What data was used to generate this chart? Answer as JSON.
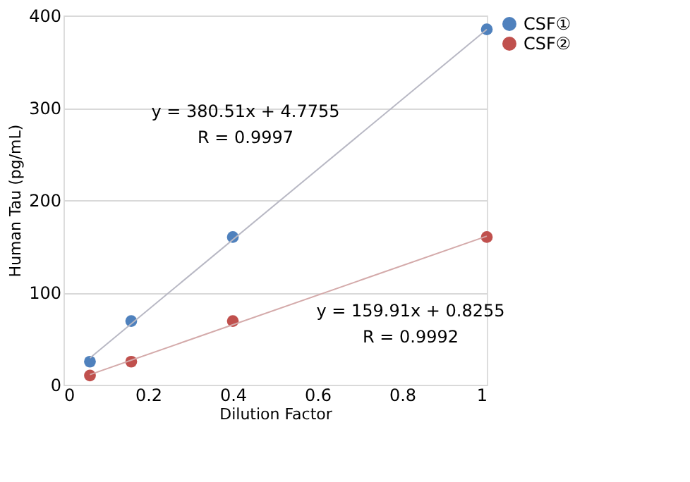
{
  "chart_data": {
    "type": "scatter",
    "xlabel": "Dilution Factor",
    "ylabel": "Human Tau (pg/mL)",
    "xlim": [
      0,
      1
    ],
    "xticks": [
      {
        "value": 0,
        "label": "0"
      },
      0.2,
      0.4,
      0.6,
      0.8,
      {
        "value": 1,
        "label": "1"
      }
    ],
    "ylim": [
      0,
      400
    ],
    "yticks": [
      0,
      100,
      200,
      300,
      400
    ],
    "grid": "y",
    "legend": "right",
    "marker": "circle",
    "series": [
      {
        "name": "CSF①",
        "color": "#4f81bd",
        "x": [
          0.0625,
          0.16,
          0.4,
          1
        ],
        "values": [
          25,
          69,
          160,
          385
        ]
      },
      {
        "name": "CSF②",
        "color": "#c0504d",
        "x": [
          0.0625,
          0.16,
          0.4,
          1
        ],
        "values": [
          10,
          25,
          69,
          160
        ]
      },
      {
        "type": "line",
        "marker": "none",
        "color": "#b8b8c4",
        "x": [
          0.0625,
          1
        ],
        "values": [
          29,
          385
        ]
      },
      {
        "type": "line",
        "marker": "none",
        "color": "#d4aaaa",
        "x": [
          0.0625,
          1
        ],
        "values": [
          11,
          161
        ]
      }
    ],
    "annotations": [
      "y = 380.51x + 4.7755",
      "R = 0.9997",
      "y = 159.91x + 0.8255",
      "R = 0.9992"
    ]
  }
}
